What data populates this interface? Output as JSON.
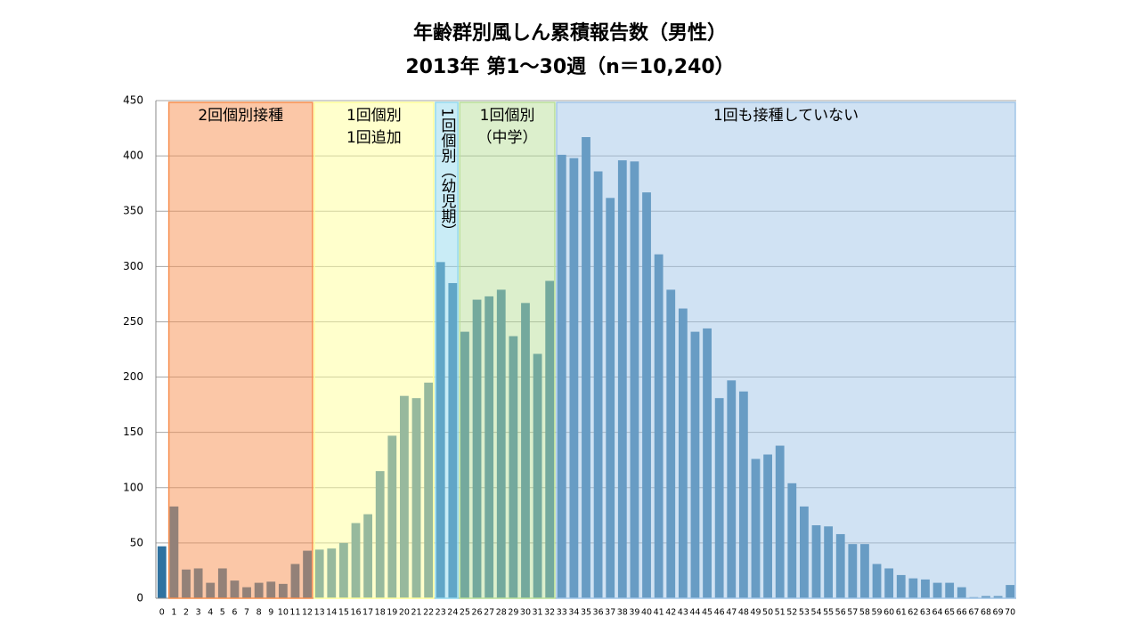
{
  "chart_data": {
    "type": "bar",
    "title": "年齢群別風しん累積報告数（男性）",
    "subtitle": "2013年 第1～30週（n＝10,240）",
    "categories": [
      "0",
      "1",
      "2",
      "3",
      "4",
      "5",
      "6",
      "7",
      "8",
      "9",
      "10",
      "11",
      "12",
      "13",
      "14",
      "15",
      "16",
      "17",
      "18",
      "19",
      "20",
      "21",
      "22",
      "23",
      "24",
      "25",
      "26",
      "27",
      "28",
      "29",
      "30",
      "31",
      "32",
      "33",
      "34",
      "35",
      "36",
      "37",
      "38",
      "39",
      "40",
      "41",
      "42",
      "43",
      "44",
      "45",
      "46",
      "47",
      "48",
      "49",
      "50",
      "51",
      "52",
      "53",
      "54",
      "55",
      "56",
      "57",
      "58",
      "59",
      "60",
      "61",
      "62",
      "63",
      "64",
      "65",
      "66",
      "67",
      "68",
      "69",
      "70"
    ],
    "values": [
      47,
      83,
      26,
      27,
      14,
      27,
      16,
      10,
      14,
      15,
      13,
      31,
      43,
      44,
      45,
      50,
      68,
      76,
      115,
      147,
      183,
      181,
      195,
      304,
      285,
      241,
      270,
      273,
      279,
      237,
      267,
      221,
      287,
      401,
      398,
      417,
      386,
      362,
      396,
      395,
      367,
      311,
      279,
      262,
      241,
      244,
      181,
      197,
      187,
      126,
      130,
      138,
      104,
      83,
      66,
      65,
      58,
      49,
      49,
      31,
      27,
      21,
      18,
      17,
      14,
      14,
      10,
      1,
      2,
      2,
      12
    ],
    "color": "#2f72a0",
    "ylim": [
      0,
      450
    ],
    "yticks": [
      0,
      50,
      100,
      150,
      200,
      250,
      300,
      350,
      400,
      450
    ],
    "grid": true,
    "regions": [
      {
        "lines": [
          "2回個別接種"
        ],
        "from": "1",
        "to": "12",
        "color": "#f78f4f"
      },
      {
        "lines": [
          "1回個別",
          "1回追加"
        ],
        "from": "13",
        "to": "22",
        "color": "#ffff99"
      },
      {
        "lines": [
          "1回個別（幼児期）"
        ],
        "from": "23",
        "to": "24",
        "color": "#93d9ed",
        "vertical": true
      },
      {
        "lines": [
          "1回個別",
          "（中学）"
        ],
        "from": "25",
        "to": "32",
        "color": "#b9df99"
      },
      {
        "lines": [
          "1回も接種していない"
        ],
        "from": "33",
        "to": "70",
        "color": "#a1c5e7"
      }
    ]
  }
}
